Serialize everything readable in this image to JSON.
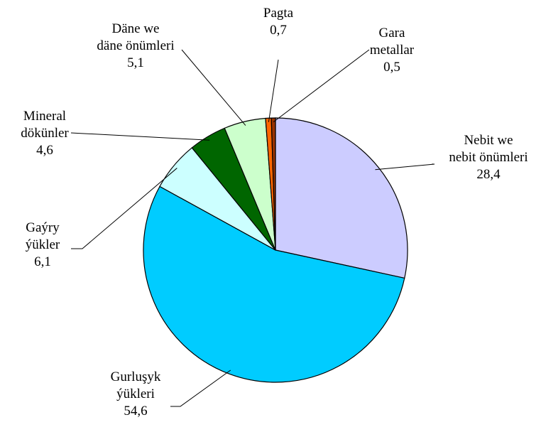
{
  "chart_data": {
    "type": "pie",
    "title": "",
    "start_angle_deg": 0,
    "direction": "clockwise",
    "slices": [
      {
        "name": "Nebit we nebit önümleri",
        "lines": [
          "Nebit we",
          "nebit önümleri"
        ],
        "value": 28.4,
        "value_label": "28,4",
        "color": "#CCCCFF"
      },
      {
        "name": "Gurluşyk ýükleri",
        "lines": [
          "Gurluşyk",
          "ýükleri"
        ],
        "value": 54.6,
        "value_label": "54,6",
        "color": "#00CCFF"
      },
      {
        "name": "Gaýry ýükler",
        "lines": [
          "Gaýry",
          "ýükler"
        ],
        "value": 6.1,
        "value_label": "6,1",
        "color": "#CCFFFF"
      },
      {
        "name": "Mineral dökünler",
        "lines": [
          "Mineral",
          "dökünler"
        ],
        "value": 4.6,
        "value_label": "4,6",
        "color": "#006600"
      },
      {
        "name": "Däne we däne önümleri",
        "lines": [
          "Däne we",
          "däne önümleri"
        ],
        "value": 5.1,
        "value_label": "5,1",
        "color": "#CCFFCC"
      },
      {
        "name": "Pagta",
        "lines": [
          "Pagta"
        ],
        "value": 0.7,
        "value_label": "0,7",
        "color": "#FF6600"
      },
      {
        "name": "Gara metallar",
        "lines": [
          "Gara",
          "metallar"
        ],
        "value": 0.5,
        "value_label": "0,5",
        "color": "#993300"
      }
    ]
  }
}
